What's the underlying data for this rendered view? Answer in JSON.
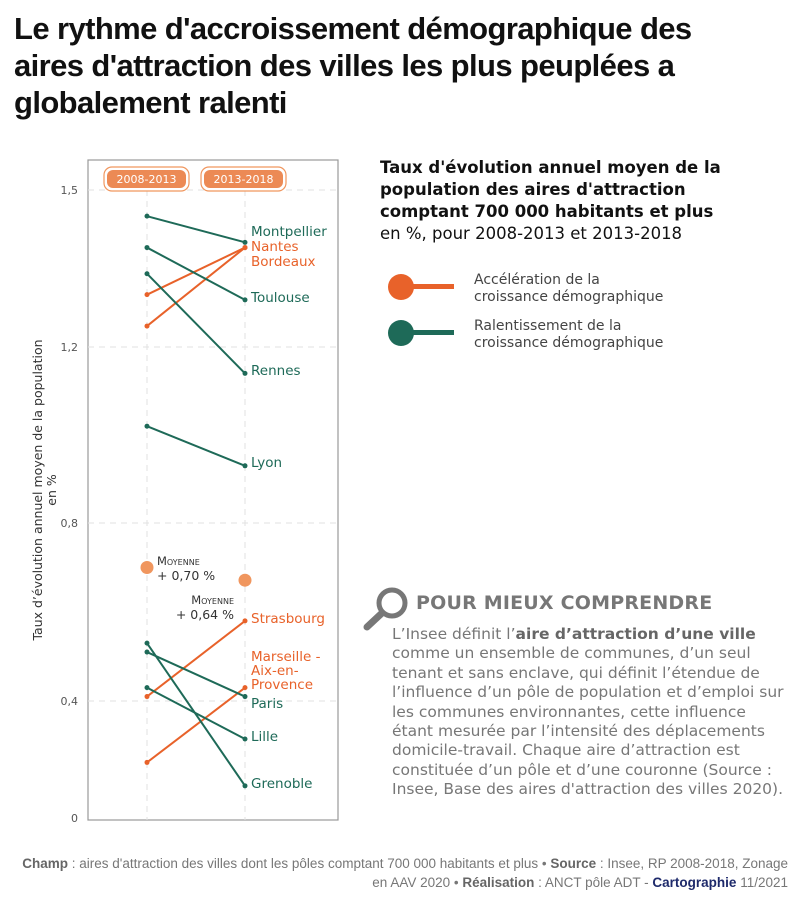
{
  "title_lines": [
    "Le rythme d'accroissement démographique des",
    "aires d'attraction des villes les plus peuplées a",
    "globalement ralenti"
  ],
  "chart_title": {
    "bold": "Taux d'évolution annuel moyen de la population des aires d'attraction comptant 700 000 habitants et plus",
    "sub": "en %, pour 2008-2013 et 2013-2018"
  },
  "legend": [
    {
      "label": "Accélération de la croissance démographique",
      "color": "#e8622a"
    },
    {
      "label": "Ralentissement de la croissance démographique",
      "color": "#1e6a58"
    }
  ],
  "info_box": {
    "heading": "POUR MIEUX COMPRENDRE",
    "icon": "magnifier-icon",
    "text_pre": "L’Insee définit l’",
    "text_bold": "aire d’attraction d’une ville",
    "text_post": " comme un ensemble de communes, d’un seul tenant et sans enclave, qui définit l’étendue de l’influence d’un pôle de population et d’emploi sur les communes environnantes, cette influence étant mesurée par l’intensité des déplacements domicile-travail. Chaque aire d’attraction est constituée d’un pôle et d’une couronne (Source : Insee, Base des aires d'attraction des villes 2020)."
  },
  "footer": {
    "champ_label": "Champ",
    "champ_text": " : aires d'attraction des villes dont les pôles comptant 700 000 habitants et plus • ",
    "source_label": "Source",
    "source_text": " : Insee, RP 2008-2018, Zonage en AAV 2020 • ",
    "realisation_label": "Réalisation",
    "realisation_text": " : ANCT pôle ADT - ",
    "carto_label": "Cartographie",
    "carto_text": " 11/2021"
  },
  "chart_data": {
    "type": "line",
    "subtype": "slope",
    "categories": [
      "2008-2013",
      "2013-2018"
    ],
    "ylabel": "Taux d’évolution annuel moyen de la population en %",
    "yticks": [
      0,
      0.4,
      0.8,
      1.2,
      1.5
    ],
    "ytick_labels": [
      "0",
      "0,4",
      "0,8",
      "1,2",
      "1,5"
    ],
    "ylim": [
      0,
      1.5
    ],
    "grid": true,
    "colors": {
      "acceleration": "#e8622a",
      "ralentissement": "#1e6a58",
      "moyenne": "#f0965e"
    },
    "series": [
      {
        "name": "Montpellier",
        "values": [
          1.45,
          1.4
        ],
        "trend": "ralentissement"
      },
      {
        "name": "Nantes",
        "values": [
          1.3,
          1.39
        ],
        "trend": "acceleration"
      },
      {
        "name": "Bordeaux",
        "values": [
          1.24,
          1.39
        ],
        "trend": "acceleration"
      },
      {
        "name": "Toulouse",
        "values": [
          1.39,
          1.29
        ],
        "trend": "ralentissement"
      },
      {
        "name": "Rennes",
        "values": [
          1.34,
          1.14
        ],
        "trend": "ralentissement"
      },
      {
        "name": "Lyon",
        "values": [
          1.02,
          0.93
        ],
        "trend": "ralentissement"
      },
      {
        "name": "Strasbourg",
        "values": [
          0.41,
          0.58
        ],
        "trend": "acceleration"
      },
      {
        "name": "Marseille - Aix-en-Provence",
        "values": [
          0.19,
          0.43
        ],
        "trend": "acceleration"
      },
      {
        "name": "Paris",
        "values": [
          0.51,
          0.41
        ],
        "trend": "ralentissement"
      },
      {
        "name": "Lille",
        "values": [
          0.43,
          0.27
        ],
        "trend": "ralentissement"
      },
      {
        "name": "Grenoble",
        "values": [
          0.53,
          0.11
        ],
        "trend": "ralentissement"
      }
    ],
    "averages": [
      {
        "category": "2008-2013",
        "value": 0.7,
        "label_title": "Moyenne",
        "label_value": "+ 0,70 %"
      },
      {
        "category": "2013-2018",
        "value": 0.64,
        "label_title": "Moyenne",
        "label_value": "+ 0,64 %"
      }
    ]
  }
}
